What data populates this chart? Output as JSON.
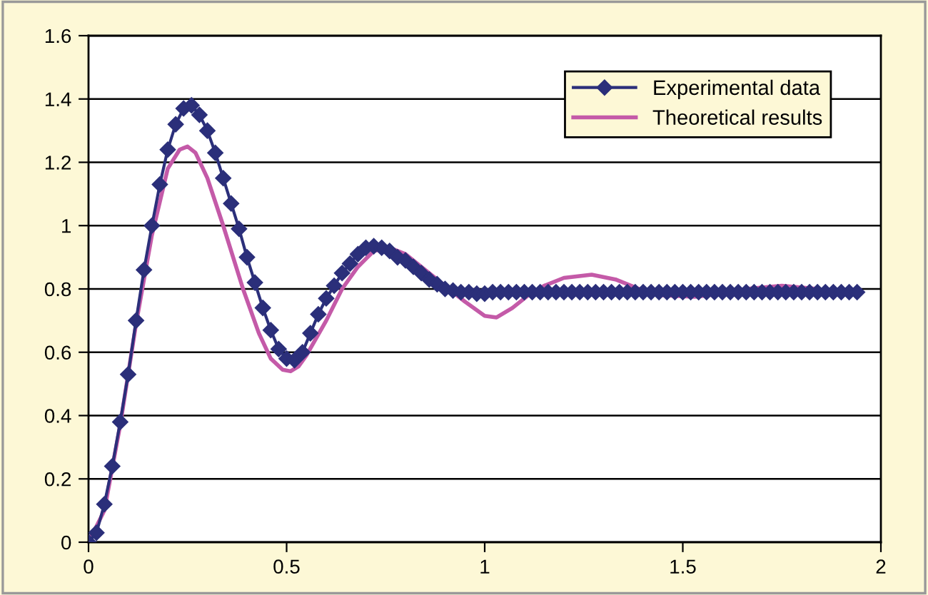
{
  "chart_data": {
    "type": "line",
    "xlim": [
      0,
      2
    ],
    "ylim": [
      0,
      1.6
    ],
    "xticks": [
      0,
      0.5,
      1,
      1.5,
      2
    ],
    "yticks": [
      0,
      0.2,
      0.4,
      0.6,
      0.8,
      1,
      1.2,
      1.4,
      1.6
    ],
    "grid": "y",
    "legend": "top right",
    "series": [
      {
        "name": "Experimental data",
        "color": "#2b2f7a",
        "marker": "diamond",
        "x": [
          0,
          0.02,
          0.04,
          0.06,
          0.08,
          0.1,
          0.12,
          0.14,
          0.16,
          0.18,
          0.2,
          0.22,
          0.24,
          0.26,
          0.28,
          0.3,
          0.32,
          0.34,
          0.36,
          0.38,
          0.4,
          0.42,
          0.44,
          0.46,
          0.48,
          0.5,
          0.52,
          0.54,
          0.56,
          0.58,
          0.6,
          0.62,
          0.64,
          0.66,
          0.68,
          0.7,
          0.72,
          0.74,
          0.76,
          0.78,
          0.8,
          0.82,
          0.84,
          0.86,
          0.88,
          0.9,
          0.92,
          0.94,
          0.96,
          0.98,
          1,
          1.02,
          1.04,
          1.06,
          1.08,
          1.1,
          1.12,
          1.14,
          1.16,
          1.18,
          1.2,
          1.22,
          1.24,
          1.26,
          1.28,
          1.3,
          1.32,
          1.34,
          1.36,
          1.38,
          1.4,
          1.42,
          1.44,
          1.46,
          1.48,
          1.5,
          1.52,
          1.54,
          1.56,
          1.58,
          1.6,
          1.62,
          1.64,
          1.66,
          1.68,
          1.7,
          1.72,
          1.74,
          1.76,
          1.78,
          1.8,
          1.82,
          1.84,
          1.86,
          1.88,
          1.9,
          1.92,
          1.94
        ],
        "values": [
          0,
          0.03,
          0.12,
          0.24,
          0.38,
          0.53,
          0.7,
          0.86,
          1.0,
          1.13,
          1.24,
          1.32,
          1.37,
          1.38,
          1.35,
          1.3,
          1.23,
          1.15,
          1.07,
          0.99,
          0.9,
          0.82,
          0.74,
          0.67,
          0.61,
          0.58,
          0.575,
          0.6,
          0.66,
          0.72,
          0.77,
          0.81,
          0.85,
          0.88,
          0.91,
          0.93,
          0.935,
          0.93,
          0.92,
          0.9,
          0.89,
          0.87,
          0.85,
          0.83,
          0.815,
          0.8,
          0.795,
          0.79,
          0.79,
          0.785,
          0.785,
          0.79,
          0.79,
          0.79,
          0.79,
          0.79,
          0.79,
          0.79,
          0.79,
          0.79,
          0.79,
          0.79,
          0.79,
          0.79,
          0.79,
          0.79,
          0.79,
          0.79,
          0.79,
          0.79,
          0.79,
          0.79,
          0.79,
          0.79,
          0.79,
          0.79,
          0.79,
          0.79,
          0.79,
          0.79,
          0.79,
          0.79,
          0.79,
          0.79,
          0.79,
          0.79,
          0.79,
          0.79,
          0.79,
          0.79,
          0.79,
          0.79,
          0.79,
          0.79,
          0.79,
          0.79,
          0.79,
          0.79
        ]
      },
      {
        "name": "Theoretical results",
        "color": "#c45aa8",
        "marker": "none",
        "x": [
          0,
          0.04,
          0.08,
          0.12,
          0.16,
          0.2,
          0.23,
          0.25,
          0.27,
          0.3,
          0.34,
          0.39,
          0.43,
          0.46,
          0.49,
          0.51,
          0.53,
          0.55,
          0.6,
          0.64,
          0.68,
          0.72,
          0.76,
          0.8,
          0.85,
          0.9,
          0.95,
          1.0,
          1.03,
          1.07,
          1.11,
          1.15,
          1.2,
          1.27,
          1.33,
          1.39,
          1.45,
          1.53,
          1.6,
          1.66,
          1.75,
          1.84
        ],
        "values": [
          0,
          0.1,
          0.37,
          0.69,
          0.97,
          1.18,
          1.24,
          1.25,
          1.23,
          1.15,
          1.0,
          0.8,
          0.66,
          0.58,
          0.545,
          0.54,
          0.555,
          0.59,
          0.7,
          0.8,
          0.87,
          0.92,
          0.93,
          0.91,
          0.86,
          0.81,
          0.76,
          0.715,
          0.71,
          0.74,
          0.78,
          0.81,
          0.835,
          0.845,
          0.83,
          0.8,
          0.78,
          0.775,
          0.785,
          0.8,
          0.81,
          0.8
        ]
      }
    ]
  }
}
